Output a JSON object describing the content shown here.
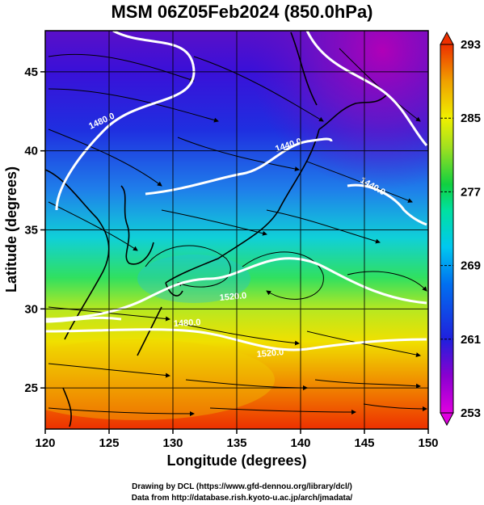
{
  "title": "MSM 06Z05Feb2024 (850.0hPa)",
  "x_axis": {
    "label": "Longitude (degrees)",
    "min": 120,
    "max": 150,
    "ticks": [
      "120",
      "125",
      "130",
      "135",
      "140",
      "145",
      "150"
    ]
  },
  "y_axis": {
    "label": "Latitude  (degrees)",
    "min": 22.4,
    "max": 47.6,
    "ticks": [
      "25",
      "30",
      "35",
      "40",
      "45"
    ]
  },
  "colorbar": {
    "min": 253,
    "max": 293,
    "ticks": [
      "253",
      "261",
      "269",
      "277",
      "285",
      "293"
    ],
    "colors": [
      "#cc00cc",
      "#6a00d0",
      "#2020dd",
      "#0060f0",
      "#00b8f0",
      "#00e0a8",
      "#10d040",
      "#a0e020",
      "#f0f000",
      "#f0a000",
      "#ee3000"
    ]
  },
  "contours": [
    {
      "label": "1480.0"
    },
    {
      "label": "1440.0"
    },
    {
      "label": "1440.0"
    },
    {
      "label": "1520.0"
    },
    {
      "label": "1480.0"
    },
    {
      "label": "1520.0"
    }
  ],
  "credits": {
    "line1": "Drawing by DCL (https://www.gfd-dennou.org/library/dcl/)",
    "line2": "Data from http://database.rish.kyoto-u.ac.jp/arch/jmadata/"
  }
}
